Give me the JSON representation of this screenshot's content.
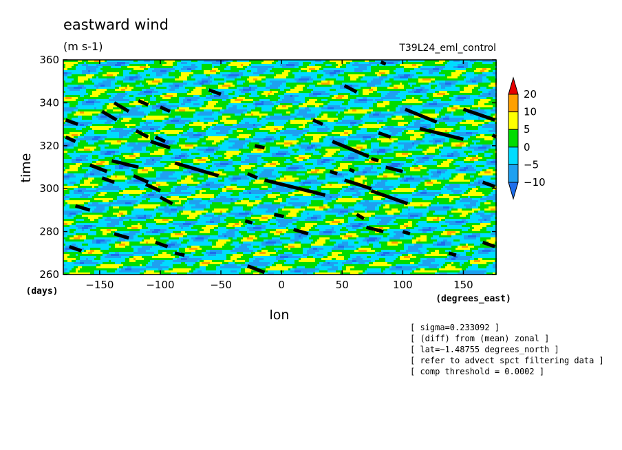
{
  "chart_data": {
    "type": "heatmap",
    "title": "eastward wind",
    "units": "(m s-1)",
    "run_label": "T39L24_eml_control",
    "xlabel": "lon",
    "xunits": "(degrees_east)",
    "ylabel": "time",
    "yunits": "(days)",
    "xlim": [
      -180,
      177
    ],
    "ylim": [
      260,
      360
    ],
    "xticks": [
      -150,
      -100,
      -50,
      0,
      50,
      100,
      150
    ],
    "yticks": [
      260,
      280,
      300,
      320,
      340,
      360
    ],
    "colorbar": {
      "levels": [
        -10,
        -5,
        0,
        5,
        10,
        20
      ],
      "level_labels": [
        "−10",
        "−5",
        "0",
        "5",
        "10",
        "20"
      ],
      "colors": [
        "#1e6eeb",
        "#1ea0f0",
        "#00dcff",
        "#00dc00",
        "#ffff00",
        "#ffa000",
        "#e60000"
      ],
      "extend": "both"
    },
    "filtered_contour_color": "#000000",
    "grid": false,
    "notes": [
      "[ sigma=0.233092 ]",
      "[ (diff) from (mean) zonal ]",
      "[ lat=−1.48755 degrees_north ]",
      "[ refer to advect spct filtering data ]",
      "[ comp threshold = 0.0002 ]"
    ]
  }
}
